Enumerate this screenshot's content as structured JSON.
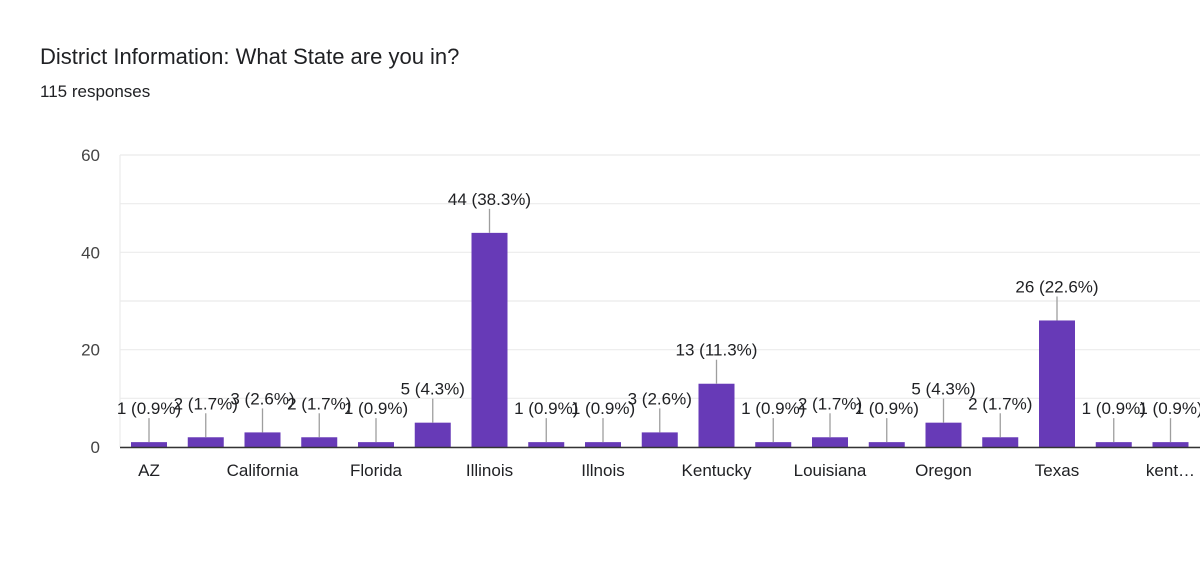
{
  "header": {
    "title": "District Information: What State are you in?",
    "responses": "115 responses"
  },
  "colors": {
    "bar": "#673AB7",
    "grid": "#EBEBEB",
    "baseline": "#333333",
    "leader": "#9E9E9E",
    "text": "#202124",
    "axis_text": "#444444"
  },
  "chart_data": {
    "type": "bar",
    "title": "District Information: What State are you in?",
    "subtitle": "115 responses",
    "xlabel": "",
    "ylabel": "",
    "ylim": [
      0,
      60
    ],
    "yticks": [
      0,
      20,
      40,
      60
    ],
    "grid": true,
    "legend": "none",
    "categories": [
      "AZ",
      "",
      "California",
      "",
      "Florida",
      "",
      "Illinois",
      "",
      "Illnois",
      "",
      "Kentucky",
      "",
      "Louisiana",
      "",
      "Oregon",
      "",
      "Texas",
      "",
      "kent…"
    ],
    "values": [
      1,
      2,
      3,
      2,
      1,
      5,
      44,
      1,
      1,
      3,
      13,
      1,
      2,
      1,
      5,
      2,
      26,
      1,
      1
    ],
    "data_labels": [
      "1 (0.9%)",
      "2 (1.7%)",
      "3 (2.6%)",
      "2 (1.7%)",
      "1 (0.9%)",
      "5 (4.3%)",
      "44 (38.3%)",
      "1 (0.9%)",
      "1 (0.9%)",
      "3 (2.6%)",
      "13 (11.3%)",
      "1 (0.9%)",
      "2 (1.7%)",
      "1 (0.9%)",
      "5 (4.3%)",
      "2 (1.7%)",
      "26 (22.6%)",
      "1 (0.9%)",
      "1 (0.9%)"
    ]
  }
}
